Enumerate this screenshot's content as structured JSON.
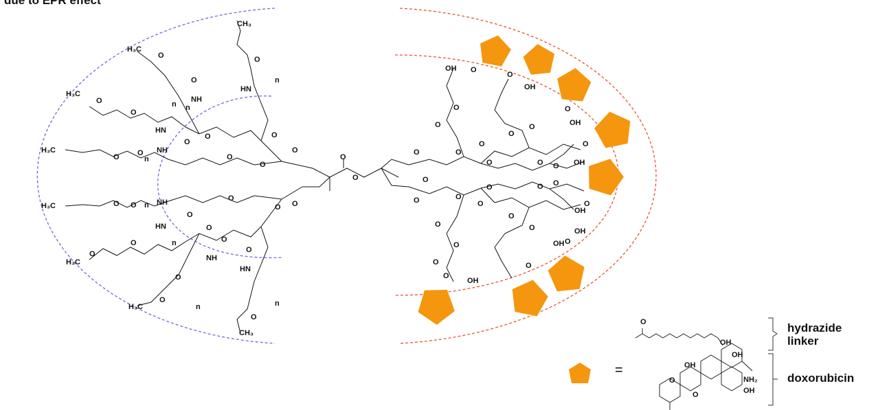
{
  "header": {
    "caption": "due to EPR effect"
  },
  "legend": {
    "equals": "=",
    "linker_label": "hydrazide\nlinker",
    "drug_label": "doxorubicin"
  },
  "atom_labels": {
    "oxygen": "O",
    "methyl": "CH3",
    "methyl_left": "H3C",
    "amide": "NH",
    "amide_rev": "HN",
    "hydroxyl": "OH",
    "repeat": "n",
    "amine": "NH2"
  },
  "colors": {
    "peg_shell": "#6a6adf",
    "drug_shell": "#e8542e",
    "drug": "#f5960f",
    "bonds": "#111111"
  },
  "icons": [
    "pentagon-icon"
  ]
}
